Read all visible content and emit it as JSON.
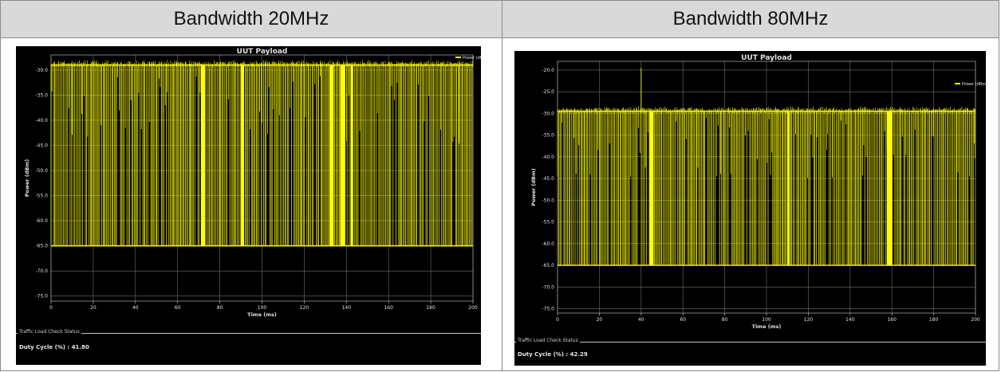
{
  "columns": [
    {
      "header": "Bandwidth 20MHz"
    },
    {
      "header": "Bandwidth 80MHz"
    }
  ],
  "colors": {
    "trace": "#ffff00",
    "background": "#000000",
    "grid": "#6e6e6e",
    "text": "#e0e0e0",
    "header_bg": "#d9d9d9"
  },
  "chart_data": [
    {
      "type": "line",
      "title": "UUT Payload",
      "xlabel": "Time (ms)",
      "ylabel": "Power (dBm)",
      "xlim": [
        0,
        200
      ],
      "ylim": [
        -76,
        -27
      ],
      "x_ticks": [
        0,
        20,
        40,
        60,
        80,
        100,
        120,
        140,
        160,
        180,
        200
      ],
      "x_tick_labels": [
        "0",
        "20",
        "40",
        "60",
        "80",
        "100",
        "120",
        "140",
        "160",
        "180",
        "200"
      ],
      "y_ticks": [
        -30,
        -35,
        -40,
        -45,
        -50,
        -55,
        -60,
        -65,
        -70,
        -75
      ],
      "y_tick_labels": [
        "-30.0",
        "-35.0",
        "-40.0",
        "-45.0",
        "-50.0",
        "-55.0",
        "-60.0",
        "-65.0",
        "-70.0",
        "-75.0"
      ],
      "grid": true,
      "legend_position": "top-right",
      "series": [
        {
          "name": "Power (dBm)",
          "on_level": -29.0,
          "off_level": -65.0,
          "on_span": [
            0,
            200
          ],
          "duty_cycle_percent": 41.8,
          "dense_on_blocks": [
            [
              71,
              73
            ],
            [
              90,
              91.5
            ],
            [
              132,
              134
            ],
            [
              137,
              139.5
            ],
            [
              142,
              143
            ]
          ]
        }
      ],
      "status_group": "Traffic Load Check Status",
      "duty_cycle_text": "Duty Cycle (%) : 41.80"
    },
    {
      "type": "line",
      "title": "UUT Payload",
      "xlabel": "Time (ms)",
      "ylabel": "Power (dBm)",
      "xlim": [
        0,
        200
      ],
      "ylim": [
        -76,
        -18
      ],
      "x_ticks": [
        0,
        20,
        40,
        60,
        80,
        100,
        120,
        140,
        160,
        180,
        200
      ],
      "x_tick_labels": [
        "0",
        "20",
        "40",
        "60",
        "80",
        "100",
        "120",
        "140",
        "160",
        "180",
        "200"
      ],
      "y_ticks": [
        -20,
        -25,
        -30,
        -35,
        -40,
        -45,
        -50,
        -55,
        -60,
        -65,
        -70,
        -75
      ],
      "y_tick_labels": [
        "-20.0",
        "-25.0",
        "-30.0",
        "-35.0",
        "-40.0",
        "-45.0",
        "-50.0",
        "-55.0",
        "-60.0",
        "-65.0",
        "-70.0",
        "-75.0"
      ],
      "grid": true,
      "legend_position": "top-right",
      "series": [
        {
          "name": "Power (dBm)",
          "on_level": -29.5,
          "off_level": -65.0,
          "on_span": [
            0,
            200
          ],
          "duty_cycle_percent": 42.29,
          "spike": {
            "x": 40,
            "y": -19.5
          },
          "dense_on_blocks": [
            [
              44,
              46
            ],
            [
              110,
              111
            ],
            [
              157.5,
              160
            ]
          ]
        }
      ],
      "status_group": "Traffic Load Check Status",
      "duty_cycle_text": "Duty Cycle (%) : 42.29"
    }
  ]
}
